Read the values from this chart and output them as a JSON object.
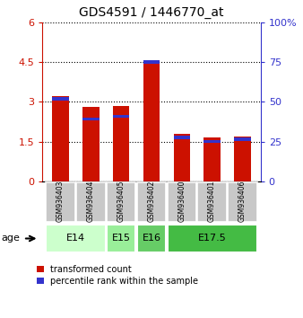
{
  "title": "GDS4591 / 1446770_at",
  "samples": [
    "GSM936403",
    "GSM936404",
    "GSM936405",
    "GSM936402",
    "GSM936400",
    "GSM936401",
    "GSM936406"
  ],
  "red_values": [
    3.2,
    2.8,
    2.85,
    4.5,
    1.8,
    1.65,
    1.7
  ],
  "blue_values": [
    3.1,
    2.35,
    2.45,
    4.5,
    1.65,
    1.5,
    1.58
  ],
  "ylim_left": [
    0,
    6
  ],
  "ylim_right": [
    0,
    100
  ],
  "yticks_left": [
    0,
    1.5,
    3.0,
    4.5,
    6
  ],
  "ytick_labels_left": [
    "0",
    "1.5",
    "3",
    "4.5",
    "6"
  ],
  "yticks_right": [
    0,
    25,
    50,
    75,
    100
  ],
  "ytick_labels_right": [
    "0",
    "25",
    "50",
    "75",
    "100%"
  ],
  "red_color": "#cc1100",
  "blue_color": "#3333cc",
  "bar_width": 0.55,
  "legend_red": "transformed count",
  "legend_blue": "percentile rank within the sample",
  "age_label": "age",
  "age_groups": [
    {
      "label": "E14",
      "start": 0,
      "end": 1,
      "color": "#ccffcc"
    },
    {
      "label": "E15",
      "start": 2,
      "end": 2,
      "color": "#99ee99"
    },
    {
      "label": "E16",
      "start": 3,
      "end": 3,
      "color": "#66cc66"
    },
    {
      "label": "E17.5",
      "start": 4,
      "end": 6,
      "color": "#44bb44"
    }
  ],
  "age_colors": [
    "#ccffcc",
    "#99ee99",
    "#66cc66",
    "#44bb44"
  ],
  "sample_bg": "#c8c8c8"
}
